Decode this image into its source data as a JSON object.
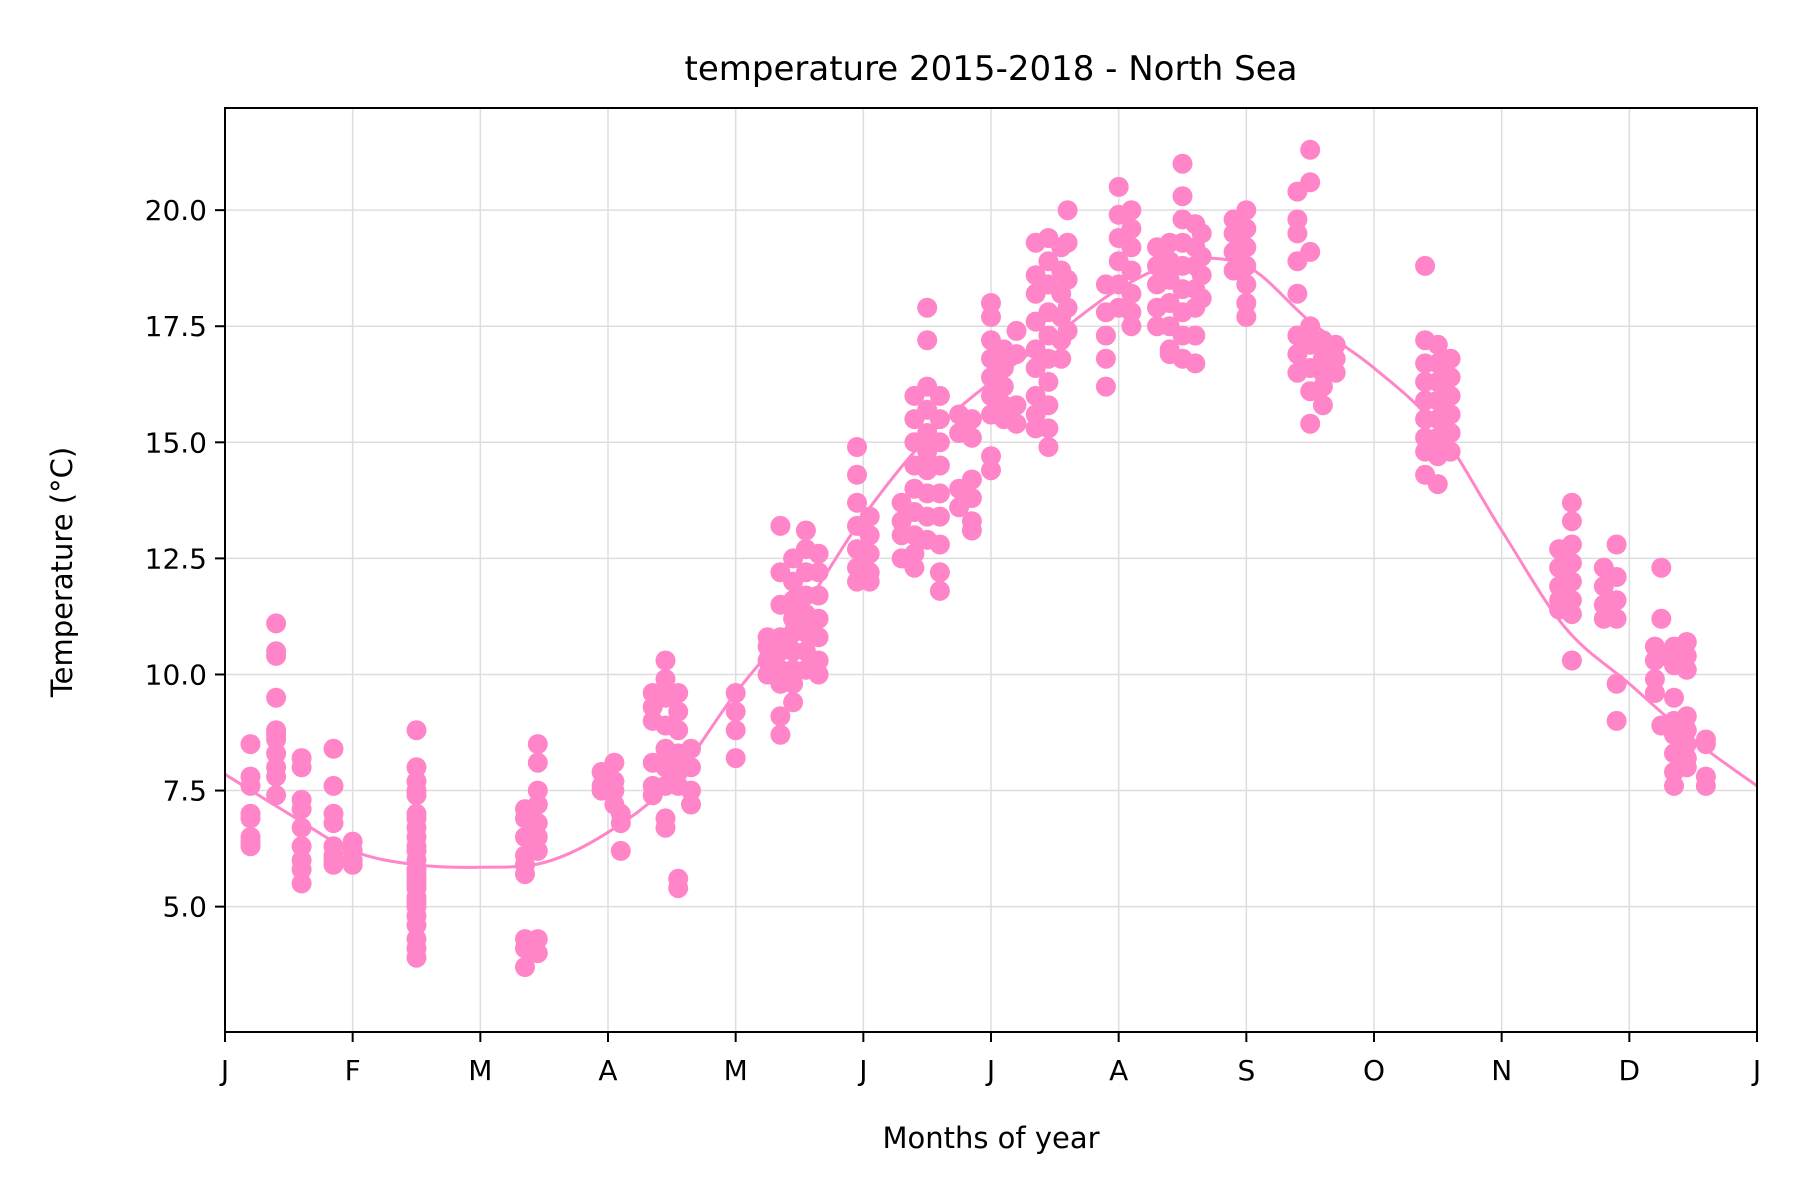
{
  "chart_data": {
    "type": "scatter",
    "title": "temperature 2015-2018 - North Sea",
    "xlabel": "Months of year",
    "ylabel": "Temperature (°C)",
    "xlim": [
      0,
      12
    ],
    "ylim": [
      2.3,
      22.2
    ],
    "grid": true,
    "point_color": "#ff85c8",
    "line_color": "#ff85c8",
    "x_ticks": [
      {
        "value": 0,
        "label": "J"
      },
      {
        "value": 1,
        "label": "F"
      },
      {
        "value": 2,
        "label": "M"
      },
      {
        "value": 3,
        "label": "A"
      },
      {
        "value": 4,
        "label": "M"
      },
      {
        "value": 5,
        "label": "J"
      },
      {
        "value": 6,
        "label": "J"
      },
      {
        "value": 7,
        "label": "A"
      },
      {
        "value": 8,
        "label": "S"
      },
      {
        "value": 9,
        "label": "O"
      },
      {
        "value": 10,
        "label": "N"
      },
      {
        "value": 11,
        "label": "D"
      },
      {
        "value": 12,
        "label": "J"
      }
    ],
    "y_ticks": [
      {
        "value": 5.0,
        "label": "5.0"
      },
      {
        "value": 7.5,
        "label": "7.5"
      },
      {
        "value": 10.0,
        "label": "10.0"
      },
      {
        "value": 12.5,
        "label": "12.5"
      },
      {
        "value": 15.0,
        "label": "15.0"
      },
      {
        "value": 17.5,
        "label": "17.5"
      },
      {
        "value": 20.0,
        "label": "20.0"
      }
    ],
    "smooth_curve": {
      "x": [
        0,
        0.5,
        1,
        1.5,
        2,
        2.5,
        3,
        3.5,
        4,
        4.5,
        5,
        5.5,
        6,
        6.5,
        7,
        7.5,
        8,
        8.5,
        9,
        9.5,
        10,
        10.5,
        11,
        11.5,
        12
      ],
      "y": [
        7.85,
        7.0,
        6.2,
        5.9,
        5.85,
        5.95,
        6.6,
        7.7,
        9.6,
        11.3,
        13.4,
        15.1,
        16.3,
        17.3,
        18.3,
        18.9,
        18.8,
        17.6,
        16.6,
        15.3,
        13.1,
        11.0,
        9.8,
        8.6,
        7.6
      ]
    },
    "clusters": [
      {
        "x": 0.2,
        "y": [
          8.5,
          7.8,
          6.9,
          6.5,
          6.3,
          7.6,
          7.0,
          6.4
        ]
      },
      {
        "x": 0.4,
        "y": [
          10.5,
          10.4,
          11.1,
          9.5,
          8.8,
          8.6,
          8.3,
          8.0,
          7.8,
          7.4,
          8.7
        ]
      },
      {
        "x": 0.6,
        "y": [
          8.2,
          8.0,
          7.1,
          6.7,
          6.3,
          5.8,
          5.5,
          6.0,
          7.3
        ]
      },
      {
        "x": 0.85,
        "y": [
          8.4,
          7.6,
          7.0,
          6.8,
          6.3,
          6.0,
          5.9,
          6.1
        ]
      },
      {
        "x": 1.0,
        "y": [
          6.4,
          6.2,
          6.0,
          5.9
        ]
      },
      {
        "x": 1.5,
        "y": [
          8.0,
          7.7,
          7.4,
          7.0,
          6.7,
          6.5,
          6.2,
          6.0,
          5.8,
          5.6,
          5.4,
          5.2,
          5.0,
          4.8,
          4.6,
          4.3,
          4.1,
          3.9,
          8.8,
          7.5,
          6.9,
          6.3,
          5.7,
          5.5,
          5.1
        ]
      },
      {
        "x": 2.35,
        "y": [
          6.9,
          7.1,
          6.5,
          6.1,
          5.9,
          5.7,
          4.3,
          4.1,
          3.7
        ]
      },
      {
        "x": 2.45,
        "y": [
          8.5,
          8.1,
          7.5,
          7.2,
          6.8,
          6.5,
          6.2,
          4.3,
          4.0
        ]
      },
      {
        "x": 2.95,
        "y": [
          7.9,
          7.6,
          7.5
        ]
      },
      {
        "x": 3.05,
        "y": [
          8.1,
          7.7,
          7.5,
          7.2
        ]
      },
      {
        "x": 3.1,
        "y": [
          7.0,
          6.8,
          6.2
        ]
      },
      {
        "x": 3.35,
        "y": [
          9.6,
          9.3,
          9.0,
          8.1,
          7.6,
          7.4
        ]
      },
      {
        "x": 3.45,
        "y": [
          10.3,
          9.9,
          9.5,
          8.9,
          8.4,
          8.0,
          7.6,
          6.9,
          6.7
        ]
      },
      {
        "x": 3.55,
        "y": [
          9.6,
          9.2,
          8.8,
          8.3,
          7.9,
          7.6,
          5.6,
          5.4
        ]
      },
      {
        "x": 3.65,
        "y": [
          8.4,
          8.0,
          7.5,
          7.2
        ]
      },
      {
        "x": 4.0,
        "y": [
          9.6,
          9.2,
          8.8,
          8.2
        ]
      },
      {
        "x": 4.25,
        "y": [
          10.8,
          10.6,
          10.3,
          10.0
        ]
      },
      {
        "x": 4.35,
        "y": [
          13.2,
          12.2,
          11.5,
          10.8,
          10.5,
          10.1,
          9.8,
          9.1,
          8.7
        ]
      },
      {
        "x": 4.45,
        "y": [
          12.5,
          12.0,
          11.6,
          11.2,
          10.9,
          10.5,
          10.1,
          9.8,
          9.4
        ]
      },
      {
        "x": 4.55,
        "y": [
          13.1,
          12.7,
          12.2,
          11.7,
          11.3,
          10.9,
          10.5,
          10.1
        ]
      },
      {
        "x": 4.65,
        "y": [
          12.6,
          12.2,
          11.7,
          11.2,
          10.8,
          10.3,
          10.0
        ]
      },
      {
        "x": 4.95,
        "y": [
          14.9,
          14.3,
          13.7,
          13.2,
          12.7,
          12.3,
          12.0
        ]
      },
      {
        "x": 5.05,
        "y": [
          13.4,
          13.0,
          12.6,
          12.2,
          12.0
        ]
      },
      {
        "x": 5.3,
        "y": [
          13.7,
          13.3,
          13.0,
          12.5
        ]
      },
      {
        "x": 5.4,
        "y": [
          16.0,
          15.5,
          15.0,
          14.5,
          14.0,
          13.5,
          13.0,
          12.6,
          12.3
        ]
      },
      {
        "x": 5.5,
        "y": [
          17.9,
          17.2,
          16.2,
          15.7,
          15.2,
          14.8,
          14.4,
          13.9,
          13.4,
          12.9
        ]
      },
      {
        "x": 5.6,
        "y": [
          16.0,
          15.5,
          15.0,
          14.5,
          13.9,
          13.4,
          12.8,
          12.2,
          11.8
        ]
      },
      {
        "x": 5.75,
        "y": [
          15.6,
          15.2,
          14.0,
          13.6
        ]
      },
      {
        "x": 5.85,
        "y": [
          15.5,
          15.1,
          14.2,
          13.8,
          13.3,
          13.1
        ]
      },
      {
        "x": 6.0,
        "y": [
          18.0,
          17.7,
          17.2,
          16.8,
          16.4,
          16.0,
          15.6,
          14.7,
          14.4
        ]
      },
      {
        "x": 6.1,
        "y": [
          17.0,
          16.6,
          16.2,
          15.8,
          15.5
        ]
      },
      {
        "x": 6.2,
        "y": [
          17.4,
          16.9,
          15.8,
          15.4
        ]
      },
      {
        "x": 6.35,
        "y": [
          19.3,
          18.6,
          18.2,
          17.6,
          17.0,
          16.6,
          16.0,
          15.6,
          15.3
        ]
      },
      {
        "x": 6.45,
        "y": [
          19.4,
          18.9,
          18.4,
          17.8,
          17.3,
          16.8,
          16.3,
          15.8,
          15.3,
          14.9
        ]
      },
      {
        "x": 6.55,
        "y": [
          19.2,
          18.7,
          18.2,
          17.7,
          17.2,
          16.8
        ]
      },
      {
        "x": 6.6,
        "y": [
          20.0,
          19.3,
          18.5,
          17.9,
          17.4
        ]
      },
      {
        "x": 6.9,
        "y": [
          18.4,
          17.8,
          17.3,
          16.8,
          16.2
        ]
      },
      {
        "x": 7.0,
        "y": [
          20.5,
          19.9,
          19.4,
          18.9,
          18.4,
          17.9
        ]
      },
      {
        "x": 7.1,
        "y": [
          20.0,
          19.6,
          19.2,
          18.7,
          18.2,
          17.8,
          17.5
        ]
      },
      {
        "x": 7.3,
        "y": [
          19.2,
          18.8,
          18.4,
          17.9,
          17.5
        ]
      },
      {
        "x": 7.4,
        "y": [
          19.3,
          18.9,
          18.5,
          18.0,
          17.5,
          17.0,
          16.9
        ]
      },
      {
        "x": 7.5,
        "y": [
          21.0,
          20.3,
          19.8,
          19.3,
          18.8,
          18.3,
          17.8,
          17.3,
          16.8
        ]
      },
      {
        "x": 7.6,
        "y": [
          19.7,
          19.2,
          18.8,
          18.3,
          17.9,
          17.3,
          16.7
        ]
      },
      {
        "x": 7.65,
        "y": [
          19.5,
          19.0,
          18.6,
          18.1
        ]
      },
      {
        "x": 7.9,
        "y": [
          19.8,
          19.5,
          19.1,
          18.7
        ]
      },
      {
        "x": 8.0,
        "y": [
          20.0,
          19.6,
          19.2,
          18.8,
          18.4,
          18.0,
          17.7
        ]
      },
      {
        "x": 8.4,
        "y": [
          20.4,
          19.8,
          19.5,
          18.9,
          18.2,
          17.3,
          16.9,
          16.5
        ]
      },
      {
        "x": 8.5,
        "y": [
          21.3,
          20.6,
          19.1,
          17.5,
          17.1,
          16.6,
          16.1,
          15.4
        ]
      },
      {
        "x": 8.6,
        "y": [
          17.2,
          16.8,
          16.5,
          16.2,
          15.8
        ]
      },
      {
        "x": 8.7,
        "y": [
          17.1,
          16.8,
          16.5
        ]
      },
      {
        "x": 9.4,
        "y": [
          18.8,
          17.2,
          16.7,
          16.3,
          15.9,
          15.5,
          15.1,
          14.8,
          14.3
        ]
      },
      {
        "x": 9.5,
        "y": [
          17.1,
          16.7,
          16.3,
          15.9,
          15.5,
          15.1,
          14.7,
          14.1
        ]
      },
      {
        "x": 9.6,
        "y": [
          16.8,
          16.4,
          16.0,
          15.6,
          15.2,
          14.8
        ]
      },
      {
        "x": 10.45,
        "y": [
          12.7,
          12.3,
          11.9,
          11.6,
          11.4
        ]
      },
      {
        "x": 10.55,
        "y": [
          13.7,
          13.3,
          12.8,
          12.4,
          12.0,
          11.6,
          11.3,
          10.3
        ]
      },
      {
        "x": 10.8,
        "y": [
          12.3,
          11.9,
          11.5,
          11.2
        ]
      },
      {
        "x": 10.9,
        "y": [
          12.8,
          12.1,
          11.6,
          11.2,
          9.8,
          9.0
        ]
      },
      {
        "x": 11.2,
        "y": [
          10.6,
          10.3,
          9.9,
          9.6
        ]
      },
      {
        "x": 11.25,
        "y": [
          12.3,
          11.2,
          10.4,
          8.9
        ]
      },
      {
        "x": 11.35,
        "y": [
          10.6,
          10.2,
          9.5,
          9.0,
          8.7,
          8.3,
          7.9,
          7.6
        ]
      },
      {
        "x": 11.45,
        "y": [
          10.7,
          10.4,
          10.1,
          9.1,
          8.8,
          8.5,
          8.2,
          8.0
        ]
      },
      {
        "x": 11.6,
        "y": [
          8.6,
          8.5,
          7.8,
          7.6
        ]
      }
    ]
  }
}
